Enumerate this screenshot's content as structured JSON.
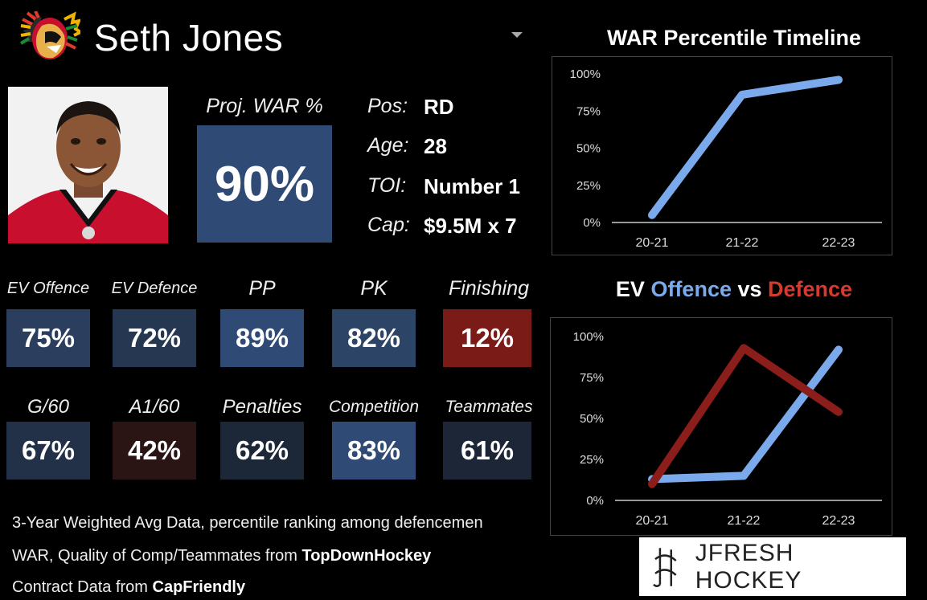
{
  "player": {
    "name": "Seth Jones",
    "logo_icon": "blackhawks-logo-icon",
    "dropdown_icon": "caret-down-icon"
  },
  "projection": {
    "label": "Proj. WAR %",
    "value": "90%"
  },
  "info": [
    {
      "label": "Pos:",
      "value": "RD"
    },
    {
      "label": "Age:",
      "value": "28"
    },
    {
      "label": "TOI:",
      "value": "Number 1"
    },
    {
      "label": "Cap:",
      "value": "$9.5M x 7"
    }
  ],
  "stats": [
    {
      "label": "EV Offence",
      "value": "75%",
      "color": "#2b3e5e"
    },
    {
      "label": "EV Defence",
      "value": "72%",
      "color": "#263752"
    },
    {
      "label": "PP",
      "value": "89%",
      "color": "#2f4a74"
    },
    {
      "label": "PK",
      "value": "82%",
      "color": "#2c4466"
    },
    {
      "label": "Finishing",
      "value": "12%",
      "color": "#7a1b18"
    },
    {
      "label": "G/60",
      "value": "67%",
      "color": "#223148"
    },
    {
      "label": "A1/60",
      "value": "42%",
      "color": "#2a1414"
    },
    {
      "label": "Penalties",
      "value": "62%",
      "color": "#1c2738"
    },
    {
      "label": "Competition",
      "value": "83%",
      "color": "#2f4a74"
    },
    {
      "label": "Teammates",
      "value": "61%",
      "color": "#1c2636"
    }
  ],
  "footer": {
    "line1": "3-Year Weighted Avg Data, percentile ranking among defencemen",
    "line2_prefix": "WAR, Quality of Comp/Teammates from ",
    "line2_bold": "TopDownHockey",
    "line3_prefix": "Contract Data from ",
    "line3_bold": "CapFriendly"
  },
  "brand": {
    "text": "JFRESH HOCKEY",
    "icon": "jfresh-logo-icon"
  },
  "chart_data": [
    {
      "type": "line",
      "title": "WAR Percentile Timeline",
      "categories": [
        "20-21",
        "21-22",
        "22-23"
      ],
      "yticks": [
        "0%",
        "25%",
        "50%",
        "75%",
        "100%"
      ],
      "ylim": [
        0,
        100
      ],
      "grid": false,
      "series": [
        {
          "values": [
            5,
            86,
            96
          ],
          "color": "#7aaaeb"
        }
      ]
    },
    {
      "type": "line",
      "title_parts": [
        {
          "text": "EV ",
          "color": "#ffffff"
        },
        {
          "text": "Offence",
          "color": "#7aaaeb"
        },
        {
          "text": " vs ",
          "color": "#ffffff"
        },
        {
          "text": "Defence",
          "color": "#d43a2f"
        }
      ],
      "categories": [
        "20-21",
        "21-22",
        "22-23"
      ],
      "yticks": [
        "0%",
        "25%",
        "50%",
        "75%",
        "100%"
      ],
      "ylim": [
        0,
        100
      ],
      "grid": false,
      "series": [
        {
          "values": [
            13,
            15,
            92
          ],
          "color": "#7aaaeb"
        },
        {
          "values": [
            10,
            93,
            54
          ],
          "color": "#8b1d1a"
        }
      ]
    }
  ]
}
